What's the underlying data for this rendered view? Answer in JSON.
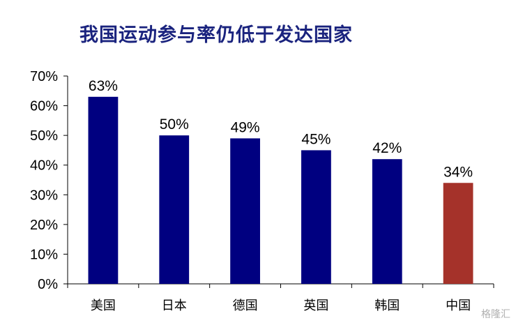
{
  "chart_data": {
    "type": "bar",
    "title": "我国运动参与率仍低于发达国家",
    "categories": [
      "美国",
      "日本",
      "德国",
      "英国",
      "韩国",
      "中国"
    ],
    "values": [
      63,
      50,
      49,
      45,
      42,
      34
    ],
    "data_labels": [
      "63%",
      "50%",
      "49%",
      "45%",
      "42%",
      "34%"
    ],
    "yticks": [
      "0%",
      "10%",
      "20%",
      "30%",
      "40%",
      "50%",
      "60%",
      "70%"
    ],
    "ylim": [
      0,
      70
    ],
    "grid": false,
    "legend": "none",
    "colors": [
      "#000080",
      "#000080",
      "#000080",
      "#000080",
      "#000080",
      "#a5322a"
    ]
  },
  "watermark": "格隆汇"
}
